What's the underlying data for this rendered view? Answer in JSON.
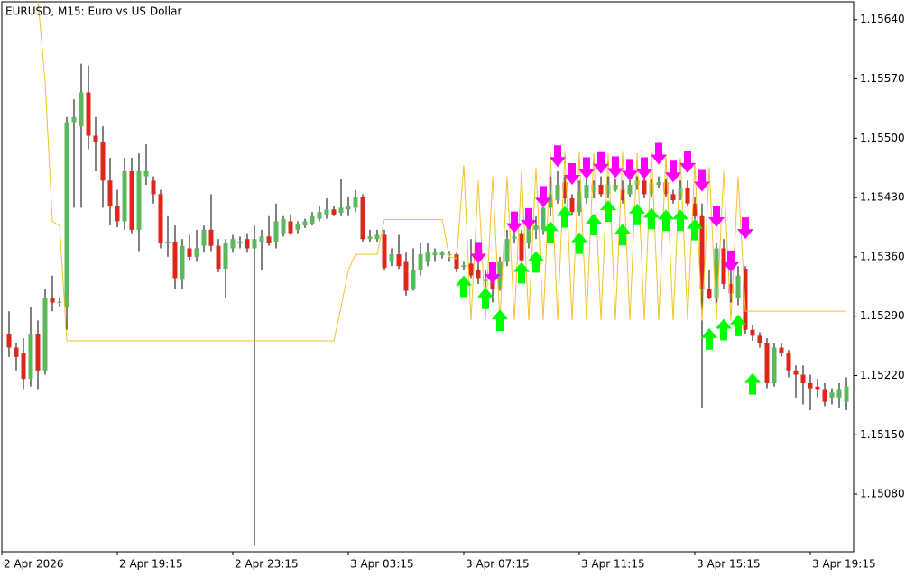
{
  "chart_data": {
    "type": "candlestick",
    "title": "EURUSD, M15:  Euro vs US Dollar",
    "categories": [
      "2 Apr 2026",
      null,
      null,
      null,
      null,
      null,
      null,
      null,
      null,
      null,
      null,
      null,
      null,
      null,
      null,
      null,
      "2 Apr 19:15",
      null,
      null,
      null,
      null,
      null,
      null,
      null,
      null,
      null,
      null,
      null,
      null,
      null,
      null,
      null,
      "2 Apr 23:15",
      null,
      null,
      null,
      null,
      null,
      null,
      null,
      null,
      null,
      null,
      null,
      null,
      null,
      null,
      null,
      "3 Apr 03:15",
      null,
      null,
      null,
      null,
      null,
      null,
      null,
      null,
      null,
      null,
      null,
      null,
      null,
      null,
      null,
      "3 Apr 07:15",
      null,
      null,
      null,
      null,
      null,
      null,
      null,
      null,
      null,
      null,
      null,
      null,
      null,
      null,
      null,
      "3 Apr 11:15",
      null,
      null,
      null,
      null,
      null,
      null,
      null,
      null,
      null,
      null,
      null,
      null,
      null,
      null,
      null,
      "3 Apr 15:15",
      null,
      null,
      null,
      null,
      null,
      null,
      null,
      null,
      null,
      null,
      null,
      null,
      null,
      null,
      null,
      "3 Apr 19:15",
      null,
      null,
      null,
      null,
      null
    ],
    "open": [
      null,
      1.15269,
      1.15253,
      1.15246,
      1.15216,
      1.15269,
      1.15226,
      1.15312,
      1.15306,
      1.15301,
      1.15519,
      1.15514,
      1.15554,
      1.15503,
      1.15496,
      1.1545,
      1.1542,
      1.15402,
      1.15461,
      1.15392,
      1.15455,
      1.1545,
      1.15434,
      1.15376,
      1.15378,
      1.15333,
      1.1537,
      1.1536,
      1.15373,
      1.15392,
      1.15373,
      1.15346,
      1.1537,
      1.15376,
      1.15381,
      1.1537,
      1.15378,
      1.15384,
      1.15378,
      1.15388,
      1.15402,
      1.15392,
      1.15397,
      1.15399,
      1.15405,
      1.1541,
      1.15416,
      1.15412,
      1.15416,
      1.15418,
      1.15431,
      1.15381,
      1.15381,
      1.15386,
      1.15354,
      1.15363,
      1.15354,
      1.15322,
      1.15344,
      1.15354,
      1.15362,
      1.15362,
      1.15362,
      1.15363,
      1.15348,
      1.15352,
      1.15344,
      1.15331,
      1.15344,
      1.15322,
      1.15354,
      1.15381,
      1.15388,
      1.15376,
      1.15392,
      1.15392,
      1.15418,
      1.15427,
      1.15448,
      1.15429,
      1.15413,
      1.15429,
      1.15437,
      1.15445,
      1.15434,
      1.15439,
      1.15439,
      1.15434,
      1.15445,
      1.1545,
      1.15434,
      1.15445,
      1.15448,
      1.15434,
      1.15429,
      1.15441,
      1.15423,
      1.15408,
      1.15322,
      1.15312,
      1.1537,
      1.15328,
      1.15312,
      1.15346,
      1.15274,
      1.15267,
      1.15258,
      1.15211,
      1.15253,
      1.15246,
      1.15226,
      1.15221,
      1.15211,
      1.15207,
      1.15203,
      1.15194,
      1.15194,
      1.15189
    ],
    "high": [
      null,
      1.15296,
      1.15258,
      1.15264,
      1.15301,
      1.15285,
      1.15322,
      1.15338,
      1.15312,
      1.15525,
      1.15546,
      1.15588,
      1.15586,
      1.15525,
      1.15514,
      1.15477,
      1.15439,
      1.15477,
      1.15477,
      1.15482,
      1.15493,
      1.15455,
      1.15439,
      1.15408,
      1.15397,
      1.15381,
      1.15386,
      1.15392,
      1.15397,
      1.15434,
      1.15381,
      1.15381,
      1.15386,
      1.15384,
      1.15388,
      1.15397,
      1.15392,
      1.15408,
      1.15423,
      1.15408,
      1.1541,
      1.15402,
      1.15405,
      1.15413,
      1.1542,
      1.15429,
      1.1542,
      1.15452,
      1.15431,
      1.15439,
      1.15434,
      1.15392,
      1.15392,
      1.15392,
      1.1537,
      1.15386,
      1.15365,
      1.1537,
      1.15376,
      1.15376,
      1.1537,
      1.15367,
      1.15367,
      1.15365,
      1.15354,
      1.15381,
      1.15365,
      1.15344,
      1.15349,
      1.1536,
      1.15392,
      1.15397,
      1.15392,
      1.15399,
      1.15408,
      1.15423,
      1.15455,
      1.15461,
      1.15455,
      1.15434,
      1.1545,
      1.15452,
      1.1545,
      1.15455,
      1.15455,
      1.15452,
      1.1545,
      1.15452,
      1.15455,
      1.15455,
      1.15452,
      1.15455,
      1.15452,
      1.15439,
      1.1545,
      1.1545,
      1.15431,
      1.15423,
      1.15344,
      1.15376,
      1.15381,
      1.15344,
      1.15349,
      1.15349,
      1.1528,
      1.15271,
      1.15264,
      1.15258,
      1.15258,
      1.1525,
      1.15232,
      1.15232,
      1.15221,
      1.15216,
      1.15211,
      1.15205,
      1.15211,
      1.15218
    ],
    "low": [
      null,
      1.15242,
      1.15226,
      1.15203,
      1.15207,
      1.15203,
      1.15221,
      1.15296,
      1.15301,
      1.15274,
      1.15418,
      1.15418,
      1.15487,
      1.15461,
      1.15418,
      1.15397,
      1.15395,
      1.15392,
      1.15388,
      1.15367,
      1.15445,
      1.15423,
      1.1537,
      1.1536,
      1.15322,
      1.15322,
      1.15356,
      1.15354,
      1.15365,
      1.15367,
      1.15342,
      1.15312,
      1.15365,
      1.1537,
      1.15365,
      1.15019,
      1.15344,
      1.15373,
      1.1537,
      1.15384,
      1.15386,
      1.15388,
      1.15394,
      1.15397,
      1.15402,
      1.15405,
      1.15408,
      1.15408,
      1.15408,
      1.15413,
      1.15378,
      1.15378,
      1.15378,
      1.15344,
      1.15349,
      1.15346,
      1.15314,
      1.1532,
      1.15338,
      1.15349,
      1.15354,
      1.15358,
      1.15354,
      1.15342,
      1.15344,
      1.15335,
      1.15328,
      1.15324,
      1.15306,
      1.1532,
      1.15349,
      1.15376,
      1.15352,
      1.1537,
      1.15381,
      1.15386,
      1.15408,
      1.15423,
      1.15423,
      1.1541,
      1.15408,
      1.15423,
      1.15429,
      1.15431,
      1.15429,
      1.15437,
      1.15423,
      1.15431,
      1.15439,
      1.15429,
      1.15431,
      1.15441,
      1.15431,
      1.15423,
      1.15427,
      1.1542,
      1.15402,
      1.15182,
      1.1531,
      1.15306,
      1.15322,
      1.15306,
      1.15303,
      1.15269,
      1.15261,
      1.15253,
      1.15205,
      1.15207,
      1.15242,
      1.15218,
      1.15194,
      1.15186,
      1.15179,
      1.15194,
      1.15184,
      1.15186,
      1.15182,
      1.15179
    ],
    "close": [
      null,
      1.15253,
      1.15242,
      1.15216,
      1.15269,
      1.15226,
      1.15312,
      1.15306,
      1.15307,
      1.15519,
      1.15525,
      1.15554,
      1.15503,
      1.15496,
      1.1545,
      1.1542,
      1.15402,
      1.15461,
      1.15392,
      1.15461,
      1.15461,
      1.15434,
      1.15376,
      1.15378,
      1.15335,
      1.15373,
      1.1536,
      1.1537,
      1.15392,
      1.15373,
      1.15346,
      1.15376,
      1.15381,
      1.15378,
      1.1537,
      1.15381,
      1.15384,
      1.15376,
      1.15402,
      1.15405,
      1.15388,
      1.15399,
      1.15402,
      1.15408,
      1.15413,
      1.15416,
      1.1541,
      1.15418,
      1.1542,
      1.15431,
      1.15381,
      1.15384,
      1.15386,
      1.15347,
      1.15363,
      1.15349,
      1.1532,
      1.15344,
      1.15363,
      1.15365,
      1.15365,
      1.15365,
      1.15363,
      1.15346,
      1.1535,
      1.15338,
      1.15335,
      1.15333,
      1.15322,
      1.15354,
      1.15381,
      1.15384,
      1.15356,
      1.15395,
      1.15397,
      1.15418,
      1.15434,
      1.15445,
      1.15429,
      1.15413,
      1.15437,
      1.15445,
      1.15445,
      1.15434,
      1.15445,
      1.15445,
      1.15427,
      1.15445,
      1.1545,
      1.15434,
      1.15447,
      1.15448,
      1.15434,
      1.15427,
      1.15441,
      1.15423,
      1.15408,
      1.15322,
      1.15312,
      1.1537,
      1.15328,
      1.15317,
      1.15338,
      1.15274,
      1.15267,
      1.15258,
      1.15211,
      1.15253,
      1.15246,
      1.15226,
      1.15221,
      1.15211,
      1.15205,
      1.15203,
      1.15189,
      1.152,
      1.15203,
      1.15207
    ],
    "up_color": "#5cb85c",
    "down_color": "#e0251b",
    "wick_color": "#000000",
    "line": {
      "color": "#f2c12e",
      "values": [
        null,
        null,
        null,
        null,
        null,
        1.15663,
        1.15567,
        1.15402,
        1.15397,
        1.15261,
        1.15261,
        1.15261,
        1.15261,
        1.15261,
        1.15261,
        1.15261,
        1.15261,
        1.15261,
        1.15261,
        1.15261,
        1.15261,
        1.15261,
        1.15261,
        1.15261,
        1.15261,
        1.15261,
        1.15261,
        1.15261,
        1.15261,
        1.15261,
        1.15261,
        1.15261,
        1.15261,
        1.15261,
        1.15261,
        1.15261,
        1.15261,
        1.15261,
        1.15261,
        1.15261,
        1.15261,
        1.15261,
        1.15261,
        1.15261,
        1.15261,
        1.15261,
        1.15261,
        1.15301,
        1.15344,
        1.15363,
        1.15363,
        1.15363,
        1.15363,
        1.15404,
        1.15404,
        1.15404,
        1.15404,
        1.15404,
        1.15404,
        1.15404,
        1.15404,
        1.15404,
        1.1536,
        1.15358,
        1.15468,
        1.15285,
        1.1545,
        1.15285,
        1.15455,
        1.15285,
        1.15455,
        1.15285,
        1.15461,
        1.15285,
        1.15466,
        1.15285,
        1.15482,
        1.15285,
        1.15484,
        1.15285,
        1.15484,
        1.15285,
        1.15482,
        1.15285,
        1.15482,
        1.15285,
        1.15484,
        1.15285,
        1.15482,
        1.15285,
        1.15484,
        1.15285,
        1.1548,
        1.15285,
        1.15477,
        1.15285,
        1.15471,
        1.15285,
        1.15466,
        1.15285,
        1.15461,
        1.15285,
        1.15455,
        1.15296,
        1.15296,
        1.15296,
        1.15296,
        1.15296,
        1.15296,
        1.15296,
        1.15296,
        1.15296,
        1.15296,
        1.15296,
        1.15296,
        1.15296,
        1.15296,
        1.15296
      ]
    },
    "buy_signals": {
      "color": "#00ff00",
      "values": [
        null,
        null,
        null,
        null,
        null,
        null,
        null,
        null,
        null,
        null,
        null,
        null,
        null,
        null,
        null,
        null,
        null,
        null,
        null,
        null,
        null,
        null,
        null,
        null,
        null,
        null,
        null,
        null,
        null,
        null,
        null,
        null,
        null,
        null,
        null,
        null,
        null,
        null,
        null,
        null,
        null,
        null,
        null,
        null,
        null,
        null,
        null,
        null,
        null,
        null,
        null,
        null,
        null,
        null,
        null,
        null,
        null,
        null,
        null,
        null,
        null,
        null,
        null,
        null,
        1.15338,
        null,
        null,
        1.15324,
        null,
        1.15298,
        null,
        null,
        1.15354,
        null,
        1.15367,
        null,
        1.15402,
        null,
        1.1542,
        null,
        1.15389,
        null,
        1.15411,
        null,
        1.15427,
        null,
        1.15399,
        null,
        1.15423,
        null,
        1.15418,
        null,
        1.15416,
        null,
        1.15416,
        null,
        1.15405,
        null,
        1.15276,
        null,
        1.15287,
        null,
        1.15292,
        null,
        1.15223,
        null,
        null,
        null,
        null,
        null,
        null,
        null,
        null,
        null,
        null,
        null,
        null,
        null
      ]
    },
    "sell_signals": {
      "color": "#ff00ff",
      "values": [
        null,
        null,
        null,
        null,
        null,
        null,
        null,
        null,
        null,
        null,
        null,
        null,
        null,
        null,
        null,
        null,
        null,
        null,
        null,
        null,
        null,
        null,
        null,
        null,
        null,
        null,
        null,
        null,
        null,
        null,
        null,
        null,
        null,
        null,
        null,
        null,
        null,
        null,
        null,
        null,
        null,
        null,
        null,
        null,
        null,
        null,
        null,
        null,
        null,
        null,
        null,
        null,
        null,
        null,
        null,
        null,
        null,
        null,
        null,
        null,
        null,
        null,
        null,
        null,
        null,
        null,
        1.15352,
        null,
        1.15328,
        null,
        null,
        1.15388,
        null,
        1.15392,
        null,
        1.15418,
        null,
        1.15466,
        null,
        1.15445,
        null,
        1.15452,
        null,
        1.15458,
        null,
        1.15453,
        null,
        1.1545,
        null,
        1.15452,
        null,
        1.15469,
        null,
        1.15448,
        null,
        1.15459,
        null,
        1.15437,
        null,
        1.15395,
        null,
        1.15342,
        null,
        1.15381,
        null,
        null,
        null,
        null,
        null,
        null,
        null,
        null,
        null,
        null,
        null,
        null,
        null,
        null
      ]
    },
    "ylim": [
      1.15012,
      1.15661
    ],
    "yticks": [
      {
        "value": 1.1564,
        "label": "1.15640"
      },
      {
        "value": 1.1557,
        "label": "1.15570"
      },
      {
        "value": 1.155,
        "label": "1.15500"
      },
      {
        "value": 1.1543,
        "label": "1.15430"
      },
      {
        "value": 1.1536,
        "label": "1.15360"
      },
      {
        "value": 1.1529,
        "label": "1.15290"
      },
      {
        "value": 1.1522,
        "label": "1.15220"
      },
      {
        "value": 1.1515,
        "label": "1.15150"
      },
      {
        "value": 1.1508,
        "label": "1.15080"
      }
    ],
    "grid": false
  }
}
